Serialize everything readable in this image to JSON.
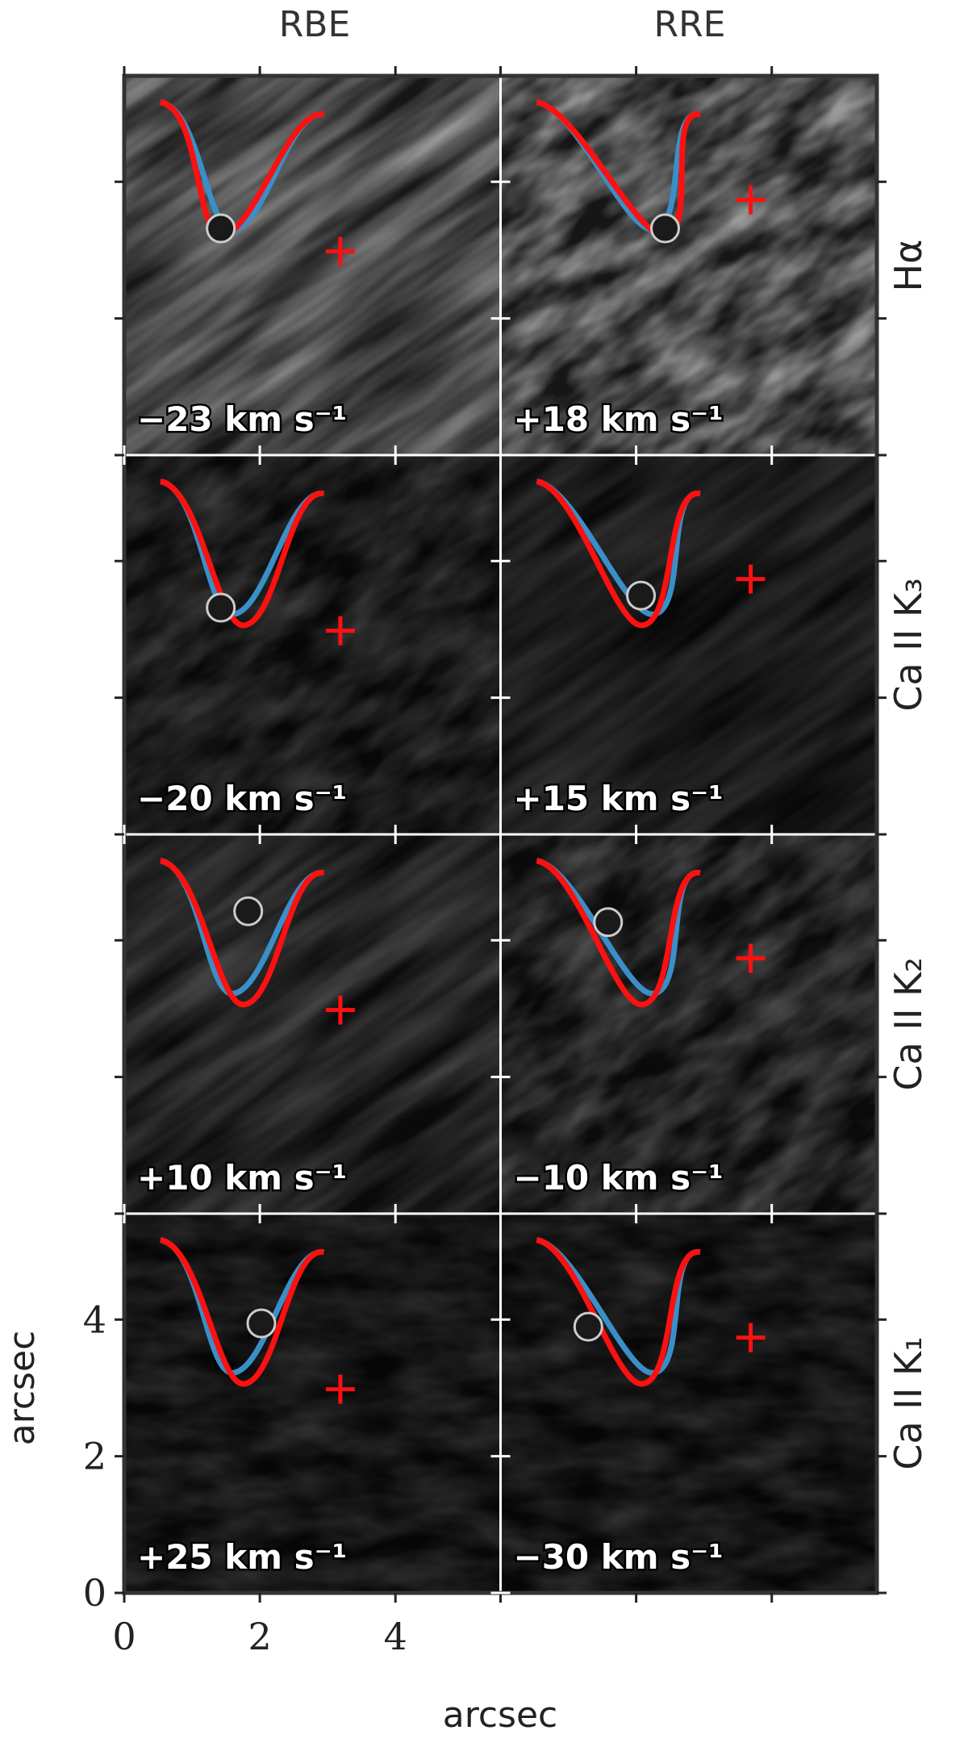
{
  "chart_data": {
    "type": "image-grid",
    "columns": [
      "RBE",
      "RRE"
    ],
    "rows": [
      "Hα",
      "Ca II K₃",
      "Ca II K₂",
      "Ca II K₁"
    ],
    "panel_labels": [
      [
        "−23 km s⁻¹",
        "+18 km s⁻¹"
      ],
      [
        "−20 km s⁻¹",
        "+15 km s⁻¹"
      ],
      [
        "+10 km s⁻¹",
        "−10 km s⁻¹"
      ],
      [
        "+25 km s⁻¹",
        "−30 km s⁻¹"
      ]
    ],
    "xlabel": "arcsec",
    "ylabel": "arcsec",
    "xlim": [
      0,
      5.55
    ],
    "ylim": [
      0,
      5.55
    ],
    "xticks": [
      0,
      2,
      4
    ],
    "yticks": [
      0,
      2,
      4
    ]
  }
}
